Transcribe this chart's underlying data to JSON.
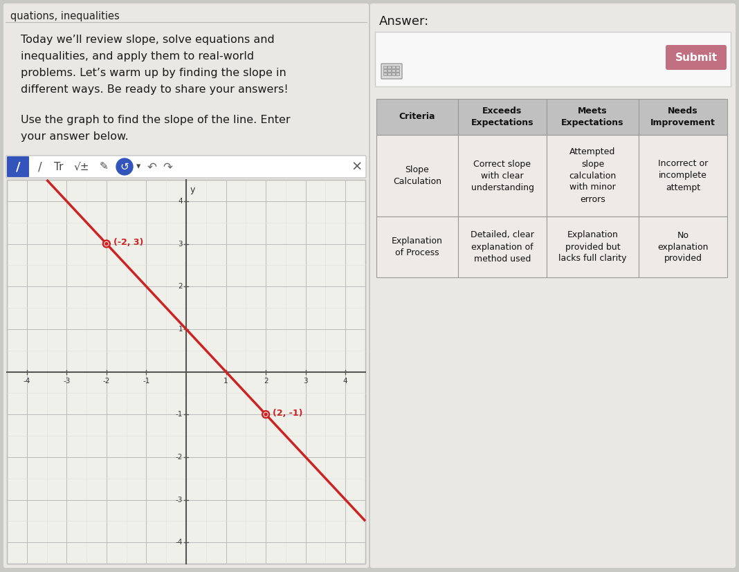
{
  "title_tab": "quations, inequalities",
  "left_text_lines": [
    "Today we’ll review slope, solve equations and",
    "inequalities, and apply them to real-world",
    "problems. Let’s warm up by finding the slope in",
    "different ways. Be ready to share your answers!"
  ],
  "question_lines": [
    "Use the graph to find the slope of the line. Enter",
    "your answer below."
  ],
  "graph": {
    "xlim": [
      -4.5,
      4.5
    ],
    "ylim": [
      -4.5,
      4.5
    ],
    "points": [
      [
        -2,
        3
      ],
      [
        2,
        -1
      ]
    ],
    "point_color": "#cc2222",
    "line_color": "#cc2222",
    "point_labels": [
      "(-2, 3)",
      "(2, -1)"
    ],
    "grid_color": "#bbbbbb",
    "bg_color": "#f0f0eb",
    "axis_color": "#555555"
  },
  "answer_label": "Answer:",
  "submit_btn_text": "Submit",
  "submit_btn_color": "#c07080",
  "table": {
    "col_headers": [
      "Criteria",
      "Exceeds\nExpectations",
      "Meets\nExpectations",
      "Needs\nImprovement"
    ],
    "header_bg": "#c0c0c0",
    "row1": {
      "col0": "Slope\nCalculation",
      "col1": "Correct slope\nwith clear\nunderstanding",
      "col2": "Attempted\nslope\ncalculation\nwith minor\nerrors",
      "col3": "Incorrect or\nincomplete\nattempt"
    },
    "row2": {
      "col0": "Explanation\nof Process",
      "col1": "Detailed, clear\nexplanation of\nmethod used",
      "col2": "Explanation\nprovided but\nlacks full clarity",
      "col3": "No\nexplanation\nprovided"
    },
    "cell_bg": "#eeeae8",
    "border_color": "#999999"
  },
  "left_panel_bg": "#eae8e4",
  "right_panel_bg": "#eae8e4",
  "page_bg": "#c8c8c4",
  "toolbar_bg": "#ffffff",
  "pencil_btn_color": "#3355bb",
  "circle_btn_color": "#3355bb"
}
